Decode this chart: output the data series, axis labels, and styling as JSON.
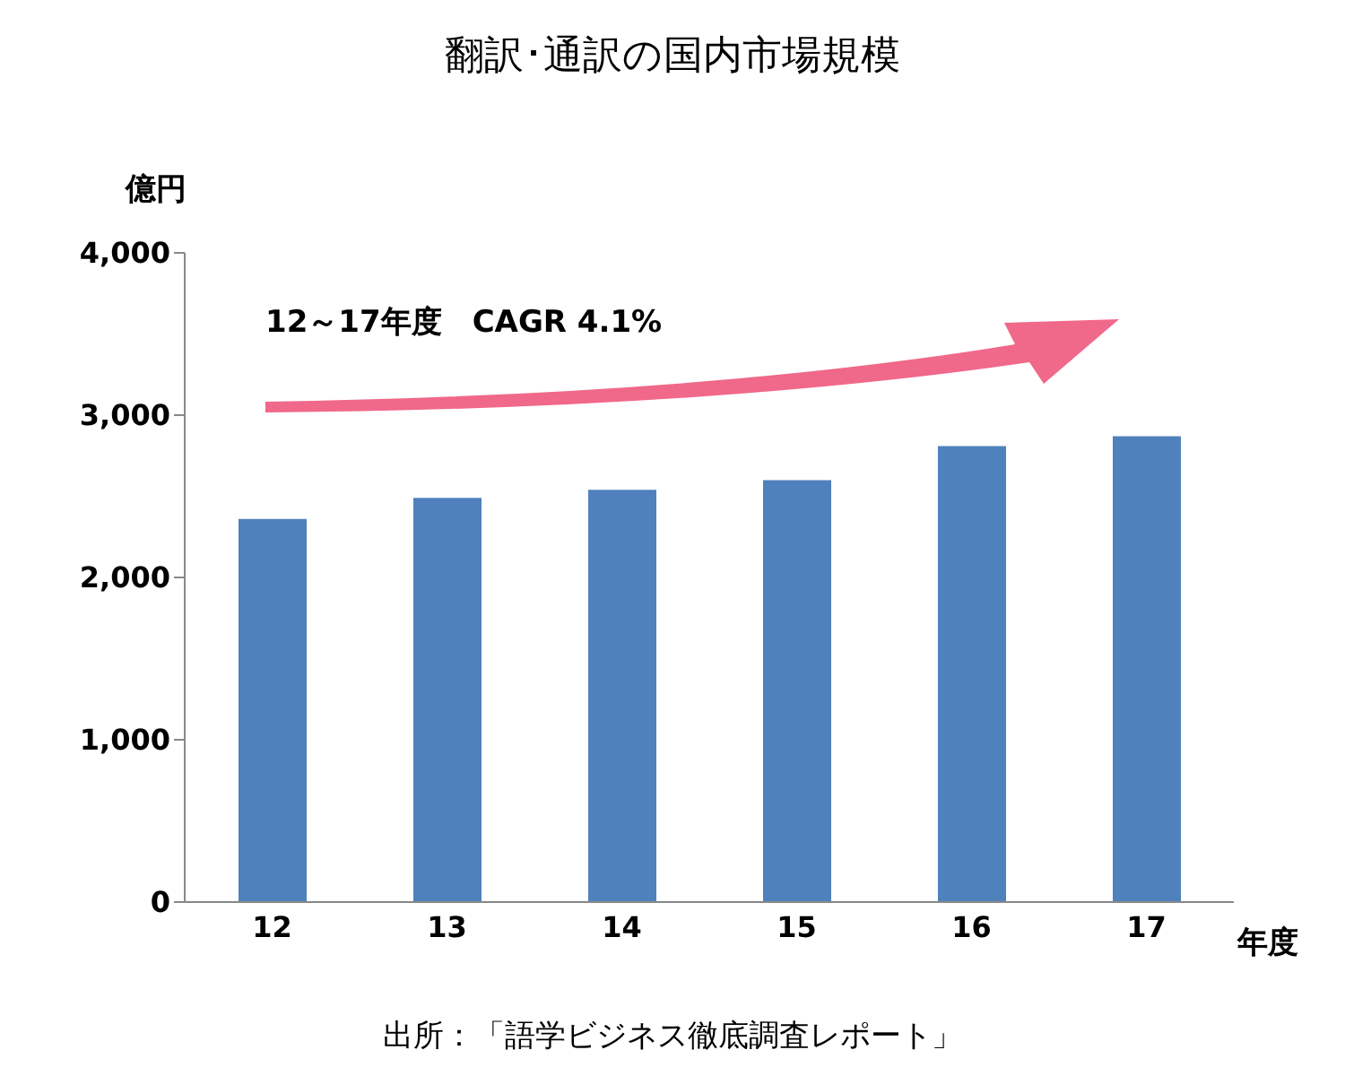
{
  "chart_data": {
    "type": "bar",
    "title": "翻訳･通訳の国内市場規模",
    "ylabel": "億円",
    "xlabel": "年度",
    "categories": [
      "12",
      "13",
      "14",
      "15",
      "16",
      "17"
    ],
    "values": [
      2360,
      2490,
      2540,
      2600,
      2810,
      2870
    ],
    "color": "#4f81bd",
    "ylim": [
      0,
      4000
    ],
    "yticks": [
      0,
      {
        "value": 1000,
        "label": "1,000"
      },
      {
        "value": 2000,
        "label": "2,000"
      },
      {
        "value": 3000,
        "label": "3,000"
      },
      {
        "value": 4000,
        "label": "4,000"
      }
    ],
    "grid": false,
    "annotations": [
      "12～17年度　CAGR 4.1%",
      "出所：「語学ビジネス徹底調査レポート」"
    ]
  }
}
